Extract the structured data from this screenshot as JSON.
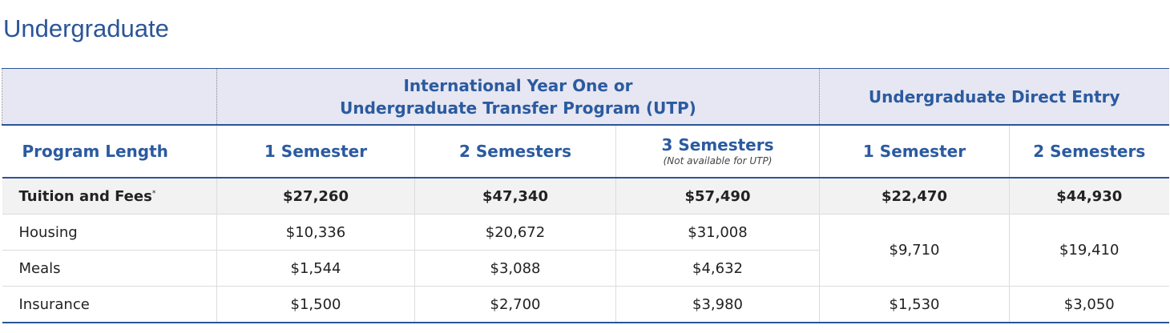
{
  "title": "Undergraduate",
  "table": {
    "groups": [
      {
        "lines": [
          "International Year One or",
          "Undergraduate Transfer Program (UTP)"
        ],
        "span": 3
      },
      {
        "lines": [
          "Undergraduate Direct Entry"
        ],
        "span": 2
      }
    ],
    "columns": [
      {
        "label": "Program Length"
      },
      {
        "label": "1 Semester"
      },
      {
        "label": "2 Semesters"
      },
      {
        "label": "3 Semesters",
        "note": "(Not available for UTP)"
      },
      {
        "label": "1 Semester"
      },
      {
        "label": "2 Semesters"
      }
    ],
    "rows": [
      {
        "label": "Tuition and Fees",
        "mark": "*",
        "cells": [
          "$27,260",
          "$47,340",
          "$57,490",
          "$22,470",
          "$44,930"
        ]
      },
      {
        "label": "Housing",
        "cells": [
          "$10,336",
          "$20,672",
          "$31,008",
          "$9,710",
          "$19,410"
        ]
      },
      {
        "label": "Meals",
        "cells": [
          "$1,544",
          "$3,088",
          "$4,632"
        ]
      },
      {
        "label": "Insurance",
        "cells": [
          "$1,500",
          "$2,700",
          "$3,980",
          "$1,530",
          "$3,050"
        ]
      }
    ]
  }
}
